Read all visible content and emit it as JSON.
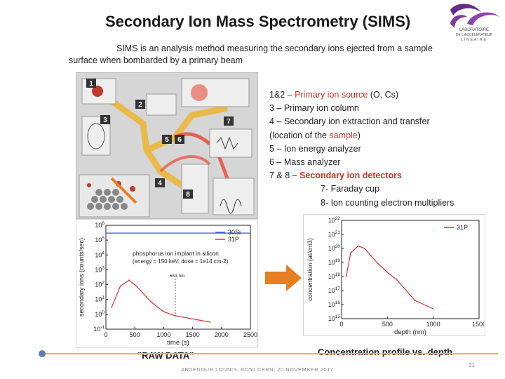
{
  "title": "Secondary Ion Mass Spectrometry (SIMS)",
  "logo": {
    "line1": "LABORATOIRE",
    "line2": "DE L'ACCELERATEUR",
    "line3": "LINEAIRE"
  },
  "intro": {
    "line1": "SIMS is an analysis method measuring the secondary ions ejected from a sample",
    "line2": "surface when bombarded by a primary beam"
  },
  "instrument": {
    "labels": [
      "1",
      "2",
      "3",
      "4",
      "5",
      "6",
      "7",
      "8"
    ]
  },
  "legend": {
    "l1_pre": "1&2 – ",
    "l1_red": "Primary ion source",
    "l1_post": " (O, Cs)",
    "l2": "3 – Primary ion column",
    "l3": "4 – Secondary ion extraction and transfer",
    "l4_pre": "(location of the ",
    "l4_red": "sample",
    "l4_post": ")",
    "l5": "5 – Ion energy analyzer",
    "l6": "6 – Mass analyzer",
    "l7_pre": "7 & 8 – ",
    "l7_red": "Secondary ion detectors",
    "l8": "7- Faraday cup",
    "l9": "8- Ion counting electron multipliers"
  },
  "chart_data": [
    {
      "type": "line",
      "xlabel": "time (s)",
      "ylabel": "secondary ions (counts/sec)",
      "yscale": "log",
      "xlim": [
        0,
        2500
      ],
      "ylim": [
        0.1,
        1000000
      ],
      "xticks": [
        "0",
        "500",
        "1000",
        "1500",
        "2000",
        "2500"
      ],
      "yticks": [
        "10-1",
        "100",
        "101",
        "102",
        "103",
        "104",
        "105",
        "106"
      ],
      "annotation": "phosphorus ion implant in silicon",
      "annotation2": "(energy = 150 keV, dose = 1e14 cm-2)",
      "marker_label": "653 nm",
      "legend_position": "top-right",
      "series": [
        {
          "name": "30Si",
          "color": "#3b5bdb",
          "values": [
            [
              0,
              300000
            ],
            [
              2500,
              300000
            ]
          ]
        },
        {
          "name": "31P",
          "color": "#d63031",
          "values": [
            [
              100,
              3
            ],
            [
              250,
              80
            ],
            [
              400,
              200
            ],
            [
              500,
              100
            ],
            [
              600,
              40
            ],
            [
              700,
              15
            ],
            [
              800,
              6
            ],
            [
              900,
              3
            ],
            [
              1000,
              1.5
            ],
            [
              1200,
              0.8
            ],
            [
              1800,
              0.3
            ]
          ]
        }
      ]
    },
    {
      "type": "line",
      "xlabel": "depth (nm)",
      "ylabel": "concentration (at/cm3)",
      "yscale": "log",
      "xlim": [
        0,
        1500
      ],
      "ylim": [
        1000000000000000.0,
        1e+22
      ],
      "xticks": [
        "0",
        "500",
        "1000",
        "1500"
      ],
      "yticks": [
        "1015",
        "1016",
        "1017",
        "1018",
        "1019",
        "1020",
        "1021",
        "1022"
      ],
      "legend_position": "top-right",
      "series": [
        {
          "name": "31P",
          "color": "#d63031",
          "values": [
            [
              50,
              1e+18
            ],
            [
              100,
              5e+19
            ],
            [
              180,
              1.5e+20
            ],
            [
              250,
              1e+20
            ],
            [
              320,
              3e+19
            ],
            [
              400,
              8e+18
            ],
            [
              500,
              2e+18
            ],
            [
              600,
              6e+17
            ],
            [
              800,
              2e+16
            ],
            [
              1000,
              5000000000000000.0
            ]
          ]
        }
      ]
    }
  ],
  "captions": {
    "raw": "\"RAW DATA\"",
    "conc": "Concentration profile vs. depth"
  },
  "footer": "ABDENOUR LOUNIS, RD50 CERN, 20 NOVEMBER 2017",
  "page_number": "31",
  "colors": {
    "accent_line": "#f0b14a",
    "red": "#c0392b",
    "logo_purple": "#6a2a8a"
  }
}
